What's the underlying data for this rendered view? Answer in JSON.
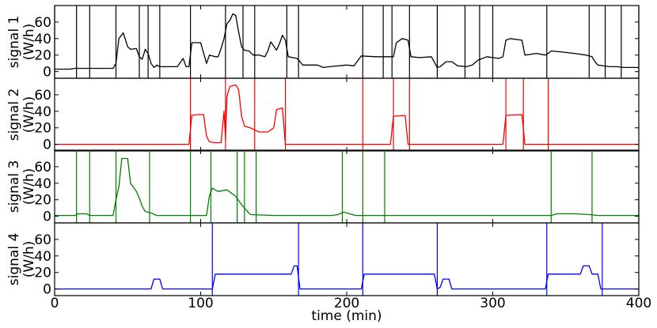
{
  "chart_data": {
    "type": "line",
    "x_label": "time (min)",
    "x_range": [
      0,
      400
    ],
    "x_ticks": [
      "0",
      "100",
      "200",
      "300",
      "400"
    ],
    "panels": [
      {
        "ylabel_line1": "signal 1",
        "ylabel_line2": "(W/h)",
        "y_range": [
          -8,
          80
        ],
        "y_ticks": [
          "0",
          "20",
          "40",
          "60"
        ],
        "color": "#000000",
        "series": [
          [
            0,
            3
          ],
          [
            10,
            3
          ],
          [
            14,
            4
          ],
          [
            22,
            4
          ],
          [
            30,
            4
          ],
          [
            40,
            4
          ],
          [
            42,
            10
          ],
          [
            44,
            40
          ],
          [
            47,
            47
          ],
          [
            50,
            30
          ],
          [
            52,
            27
          ],
          [
            56,
            28
          ],
          [
            58,
            18
          ],
          [
            60,
            15
          ],
          [
            62,
            27
          ],
          [
            64,
            22
          ],
          [
            66,
            10
          ],
          [
            68,
            5
          ],
          [
            70,
            8
          ],
          [
            72,
            6
          ],
          [
            84,
            6
          ],
          [
            88,
            16
          ],
          [
            90,
            6
          ],
          [
            92,
            6
          ],
          [
            94,
            35
          ],
          [
            100,
            35
          ],
          [
            104,
            10
          ],
          [
            106,
            20
          ],
          [
            110,
            18
          ],
          [
            112,
            18
          ],
          [
            114,
            28
          ],
          [
            116,
            40
          ],
          [
            118,
            58
          ],
          [
            120,
            62
          ],
          [
            122,
            70
          ],
          [
            124,
            68
          ],
          [
            126,
            48
          ],
          [
            128,
            30
          ],
          [
            130,
            26
          ],
          [
            133,
            25
          ],
          [
            136,
            20
          ],
          [
            140,
            20
          ],
          [
            144,
            18
          ],
          [
            146,
            25
          ],
          [
            148,
            36
          ],
          [
            152,
            26
          ],
          [
            154,
            34
          ],
          [
            156,
            44
          ],
          [
            158,
            38
          ],
          [
            160,
            18
          ],
          [
            166,
            16
          ],
          [
            170,
            8
          ],
          [
            180,
            8
          ],
          [
            184,
            5
          ],
          [
            188,
            6
          ],
          [
            200,
            8
          ],
          [
            205,
            7
          ],
          [
            210,
            19
          ],
          [
            220,
            18
          ],
          [
            228,
            18
          ],
          [
            232,
            18
          ],
          [
            234,
            35
          ],
          [
            238,
            40
          ],
          [
            242,
            38
          ],
          [
            244,
            18
          ],
          [
            250,
            17
          ],
          [
            258,
            18
          ],
          [
            262,
            5
          ],
          [
            264,
            6
          ],
          [
            268,
            12
          ],
          [
            272,
            12
          ],
          [
            276,
            7
          ],
          [
            282,
            6
          ],
          [
            286,
            8
          ],
          [
            290,
            14
          ],
          [
            296,
            18
          ],
          [
            300,
            17
          ],
          [
            304,
            16
          ],
          [
            307,
            18
          ],
          [
            309,
            38
          ],
          [
            312,
            40
          ],
          [
            320,
            38
          ],
          [
            322,
            20
          ],
          [
            330,
            22
          ],
          [
            336,
            20
          ],
          [
            338,
            22
          ],
          [
            340,
            25
          ],
          [
            346,
            24
          ],
          [
            356,
            22
          ],
          [
            364,
            20
          ],
          [
            368,
            18
          ],
          [
            370,
            12
          ],
          [
            372,
            8
          ],
          [
            380,
            6
          ],
          [
            385,
            6
          ],
          [
            390,
            5
          ],
          [
            400,
            5
          ]
        ],
        "changepoints": [
          0,
          15,
          24,
          42,
          58,
          64,
          72,
          93,
          117,
          129,
          137,
          159,
          167,
          211,
          225,
          231,
          243,
          262,
          281,
          291,
          300,
          337,
          366,
          377,
          388,
          400
        ]
      },
      {
        "ylabel_line1": "signal 2",
        "ylabel_line2": "(W/h)",
        "y_range": [
          -8,
          80
        ],
        "y_ticks": [
          "0",
          "20",
          "40",
          "60"
        ],
        "color": "#ff0000",
        "series": [
          [
            0,
            0
          ],
          [
            92,
            0
          ],
          [
            94,
            35
          ],
          [
            98,
            36
          ],
          [
            102,
            36
          ],
          [
            104,
            10
          ],
          [
            106,
            3
          ],
          [
            110,
            2
          ],
          [
            114,
            2
          ],
          [
            116,
            40
          ],
          [
            117,
            6
          ],
          [
            118,
            58
          ],
          [
            120,
            70
          ],
          [
            124,
            72
          ],
          [
            126,
            66
          ],
          [
            128,
            34
          ],
          [
            130,
            22
          ],
          [
            134,
            20
          ],
          [
            140,
            15
          ],
          [
            146,
            15
          ],
          [
            150,
            20
          ],
          [
            152,
            42
          ],
          [
            156,
            44
          ],
          [
            158,
            0
          ],
          [
            210,
            0
          ],
          [
            230,
            0
          ],
          [
            232,
            34
          ],
          [
            240,
            35
          ],
          [
            242,
            0
          ],
          [
            307,
            0
          ],
          [
            309,
            35
          ],
          [
            320,
            36
          ],
          [
            322,
            0
          ],
          [
            400,
            0
          ]
        ],
        "changepoints": [
          93,
          117,
          137,
          158,
          211,
          232,
          243,
          309,
          321,
          338
        ]
      },
      {
        "ylabel_line1": "signal 3",
        "ylabel_line2": "(W/h)",
        "y_range": [
          -8,
          80
        ],
        "y_ticks": [
          "0",
          "20",
          "40",
          "60"
        ],
        "color": "#008000",
        "series": [
          [
            0,
            1
          ],
          [
            14,
            1
          ],
          [
            16,
            3
          ],
          [
            22,
            3
          ],
          [
            24,
            1
          ],
          [
            40,
            1
          ],
          [
            42,
            20
          ],
          [
            44,
            36
          ],
          [
            46,
            70
          ],
          [
            50,
            70
          ],
          [
            52,
            40
          ],
          [
            56,
            30
          ],
          [
            58,
            22
          ],
          [
            60,
            12
          ],
          [
            62,
            6
          ],
          [
            66,
            4
          ],
          [
            70,
            1
          ],
          [
            90,
            1
          ],
          [
            104,
            1
          ],
          [
            106,
            25
          ],
          [
            108,
            34
          ],
          [
            112,
            30
          ],
          [
            118,
            32
          ],
          [
            124,
            24
          ],
          [
            128,
            14
          ],
          [
            132,
            6
          ],
          [
            134,
            2
          ],
          [
            150,
            1
          ],
          [
            190,
            1
          ],
          [
            194,
            2
          ],
          [
            198,
            5
          ],
          [
            202,
            3
          ],
          [
            206,
            1
          ],
          [
            228,
            1
          ],
          [
            340,
            1
          ],
          [
            344,
            3
          ],
          [
            356,
            3
          ],
          [
            366,
            2
          ],
          [
            372,
            1
          ],
          [
            400,
            1
          ]
        ],
        "changepoints": [
          15,
          24,
          42,
          65,
          93,
          107,
          125,
          130,
          138,
          197,
          211,
          226,
          340,
          368,
          400
        ]
      },
      {
        "ylabel_line1": "signal 4",
        "ylabel_line2": "(W/h)",
        "y_range": [
          -8,
          80
        ],
        "y_ticks": [
          "0",
          "20",
          "40",
          "60"
        ],
        "color": "#0000ff",
        "series": [
          [
            0,
            0
          ],
          [
            66,
            0
          ],
          [
            68,
            12
          ],
          [
            72,
            12
          ],
          [
            74,
            0
          ],
          [
            108,
            0
          ],
          [
            110,
            18
          ],
          [
            150,
            18
          ],
          [
            162,
            18
          ],
          [
            164,
            28
          ],
          [
            166,
            28
          ],
          [
            168,
            0
          ],
          [
            210,
            0
          ],
          [
            212,
            18
          ],
          [
            260,
            18
          ],
          [
            262,
            0
          ],
          [
            264,
            2
          ],
          [
            266,
            12
          ],
          [
            270,
            12
          ],
          [
            272,
            0
          ],
          [
            336,
            0
          ],
          [
            338,
            18
          ],
          [
            360,
            18
          ],
          [
            362,
            28
          ],
          [
            366,
            28
          ],
          [
            368,
            18
          ],
          [
            372,
            18
          ],
          [
            374,
            0
          ],
          [
            400,
            0
          ]
        ],
        "changepoints": [
          108,
          167,
          211,
          262,
          337,
          375
        ]
      }
    ]
  }
}
